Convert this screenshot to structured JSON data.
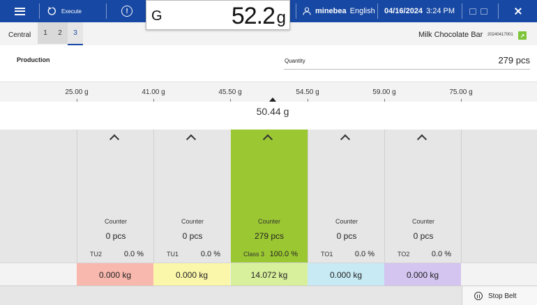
{
  "header": {
    "execute_label": "Execute",
    "weight_mode": "G",
    "weight_value": "52.2",
    "weight_unit": "g",
    "user_name": "minebea",
    "language": "English",
    "date": "04/16/2024",
    "time": "3:24 PM",
    "icons": [
      "menu-icon",
      "execute-refresh-icon",
      "alert-icon",
      "user-icon",
      "export-icon",
      "share-icon",
      "close-icon"
    ]
  },
  "tabs": {
    "central_label": "Central",
    "items": [
      "1",
      "2",
      "3"
    ],
    "active": "3"
  },
  "product": {
    "name": "Milk Chocolate Bar",
    "code": "20240417001"
  },
  "production": {
    "label": "Production",
    "quantity_label": "Quantity",
    "quantity_value": "279 pcs"
  },
  "scale": {
    "ticks": [
      "25.00 g",
      "41.00 g",
      "45.50 g",
      "54.50 g",
      "59.00 g",
      "75.00 g"
    ],
    "current_weight": "50.44 g"
  },
  "classes": [
    {
      "counter_label": "Counter",
      "count": "0 pcs",
      "name": "TU2",
      "percent": "0.0 %",
      "total": "0.000 kg",
      "total_color": "#f9b8ae"
    },
    {
      "counter_label": "Counter",
      "count": "0 pcs",
      "name": "TU1",
      "percent": "0.0 %",
      "total": "0.000 kg",
      "total_color": "#fbf7aa"
    },
    {
      "counter_label": "Counter",
      "count": "279 pcs",
      "name": "Class 3",
      "percent": "100.0 %",
      "total": "14.072 kg",
      "total_color": "#d8ef9c",
      "active": true,
      "active_color": "#9bc832"
    },
    {
      "counter_label": "Counter",
      "count": "0 pcs",
      "name": "TO1",
      "percent": "0.0 %",
      "total": "0.000 kg",
      "total_color": "#c7eaf5"
    },
    {
      "counter_label": "Counter",
      "count": "0 pcs",
      "name": "TO2",
      "percent": "0.0 %",
      "total": "0.000 kg",
      "total_color": "#d3c4f0"
    }
  ],
  "footer": {
    "stop_belt_label": "Stop Belt"
  },
  "colors": {
    "header_bg": "#1748a3",
    "accent": "#1748a3",
    "active_class": "#9bc832"
  }
}
